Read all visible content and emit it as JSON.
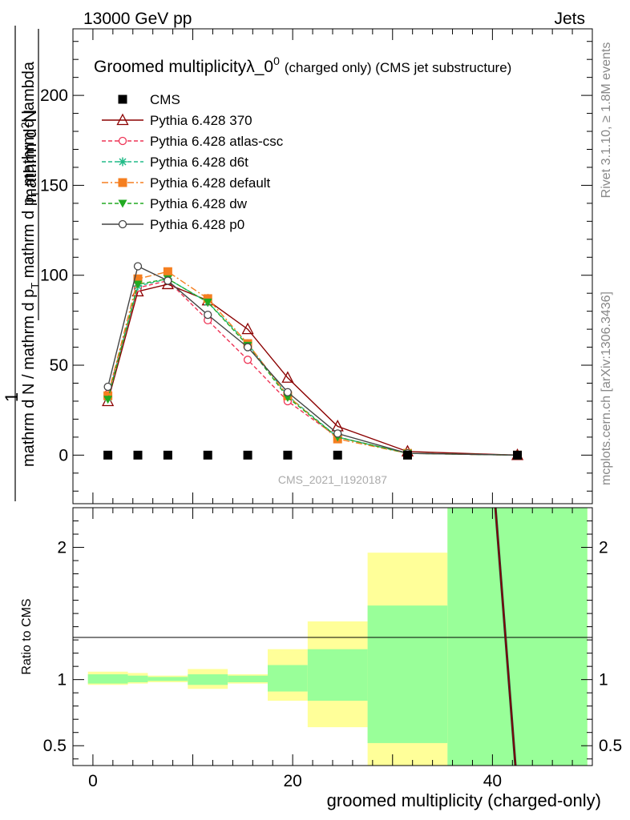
{
  "header": {
    "left": "13000 GeV pp",
    "right": "Jets"
  },
  "side_labels": {
    "top": "Rivet 3.1.10, ≥ 1.8M events",
    "bottom": "mcplots.cern.ch [arXiv:1306.3436]"
  },
  "chart_data": [
    {
      "panel": "main",
      "type": "line",
      "title": "Groomed multiplicityλ_0",
      "title_superscript": "0",
      "subtitle": "(charged only) (CMS jet substructure)",
      "ylabel_fraction_top": "1",
      "ylabel_numerator": "mathrm d",
      "ylabel_numerator_superscript": "2",
      "ylabel_numerator_tail": "N",
      "ylabel_denominator": "mathrm d N / mathrm d p",
      "ylabel_denominator_sub": "T",
      "ylabel_denominator_tail": " mathrm d p",
      "ylabel_denominator_sub2": "T",
      "ylabel_denominator_tail2": " mathrm d lambda",
      "watermark": "CMS_2021_I1920187",
      "xlim": [
        -2,
        50
      ],
      "ylim": [
        -27,
        237
      ],
      "yticks": [
        0,
        50,
        100,
        150,
        200
      ],
      "series": [
        {
          "name": "CMS",
          "color": "#000000",
          "marker": "square-filled",
          "dash": "none",
          "x": [
            1.5,
            4.5,
            7.5,
            11.5,
            15.5,
            19.5,
            24.5,
            31.5,
            42.5
          ],
          "y": [
            0,
            0,
            0,
            0,
            0,
            0,
            0,
            0,
            0
          ]
        },
        {
          "name": "Pythia 6.428 370",
          "color": "#8b0000",
          "marker": "triangle-open",
          "dash": "solid",
          "x": [
            1.5,
            4.5,
            7.5,
            11.5,
            15.5,
            19.5,
            24.5,
            31.5,
            42.5
          ],
          "y": [
            30,
            91,
            95,
            86,
            70,
            43,
            16,
            2,
            0
          ]
        },
        {
          "name": "Pythia 6.428 atlas-csc",
          "color": "#ee3355",
          "marker": "circle-open",
          "dash": "5,3",
          "x": [
            1.5,
            4.5,
            7.5,
            11.5,
            15.5,
            19.5,
            24.5,
            31.5,
            42.5
          ],
          "y": [
            34,
            93,
            97,
            75,
            53,
            30,
            10,
            1,
            0
          ]
        },
        {
          "name": "Pythia 6.428 d6t",
          "color": "#22bb88",
          "marker": "star",
          "dash": "5,3",
          "x": [
            1.5,
            4.5,
            7.5,
            11.5,
            15.5,
            19.5,
            24.5,
            31.5,
            42.5
          ],
          "y": [
            32,
            94,
            98,
            85,
            62,
            33,
            10,
            1,
            0
          ]
        },
        {
          "name": "Pythia 6.428 default",
          "color": "#f57f20",
          "marker": "square-filled",
          "dash": "8,3,2,3",
          "x": [
            1.5,
            4.5,
            7.5,
            11.5,
            15.5,
            19.5,
            24.5,
            31.5,
            42.5
          ],
          "y": [
            33,
            98,
            102,
            87,
            62,
            33,
            9,
            1,
            0
          ]
        },
        {
          "name": "Pythia 6.428 dw",
          "color": "#22aa22",
          "marker": "triangle-down-filled",
          "dash": "5,3",
          "x": [
            1.5,
            4.5,
            7.5,
            11.5,
            15.5,
            19.5,
            24.5,
            31.5,
            42.5
          ],
          "y": [
            31,
            95,
            98,
            85,
            61,
            32,
            10,
            1,
            0
          ]
        },
        {
          "name": "Pythia 6.428 p0",
          "color": "#444444",
          "marker": "circle-open",
          "dash": "solid",
          "x": [
            1.5,
            4.5,
            7.5,
            11.5,
            15.5,
            19.5,
            24.5,
            31.5,
            42.5
          ],
          "y": [
            38,
            105,
            97,
            78,
            60,
            35,
            12,
            1,
            0
          ]
        }
      ]
    },
    {
      "panel": "ratio",
      "type": "area",
      "ylabel": "Ratio to CMS",
      "xlabel": "groomed multiplicity (charged-only)",
      "xlim": [
        -2,
        50
      ],
      "ylim": [
        0.35,
        2.3
      ],
      "yticks": [
        0.5,
        1,
        2
      ],
      "xticks": [
        0,
        20,
        40
      ],
      "bins": [
        {
          "x0": -0.5,
          "x1": 3.5,
          "yellow": [
            0.96,
            1.06
          ],
          "green": [
            0.97,
            1.04
          ]
        },
        {
          "x0": 3.5,
          "x1": 5.5,
          "yellow": [
            0.97,
            1.05
          ],
          "green": [
            0.98,
            1.03
          ]
        },
        {
          "x0": 5.5,
          "x1": 9.5,
          "yellow": [
            0.98,
            1.03
          ],
          "green": [
            0.99,
            1.02
          ]
        },
        {
          "x0": 9.5,
          "x1": 13.5,
          "yellow": [
            0.93,
            1.08
          ],
          "green": [
            0.96,
            1.04
          ]
        },
        {
          "x0": 13.5,
          "x1": 17.5,
          "yellow": [
            0.97,
            1.04
          ],
          "green": [
            0.98,
            1.03
          ]
        },
        {
          "x0": 17.5,
          "x1": 21.5,
          "yellow": [
            0.84,
            1.23
          ],
          "green": [
            0.91,
            1.11
          ]
        },
        {
          "x0": 21.5,
          "x1": 27.5,
          "yellow": [
            0.64,
            1.44
          ],
          "green": [
            0.84,
            1.23
          ]
        },
        {
          "x0": 27.5,
          "x1": 35.5,
          "yellow": [
            0.35,
            1.96
          ],
          "green": [
            0.52,
            1.56
          ]
        },
        {
          "x0": 35.5,
          "x1": 49.5,
          "yellow": [
            0.35,
            2.3
          ],
          "green": [
            0.35,
            2.3
          ]
        }
      ],
      "ratio_line": {
        "x": [
          40.3,
          42.3
        ],
        "y": [
          2.3,
          0.35
        ],
        "color": "#8b0000"
      }
    }
  ]
}
